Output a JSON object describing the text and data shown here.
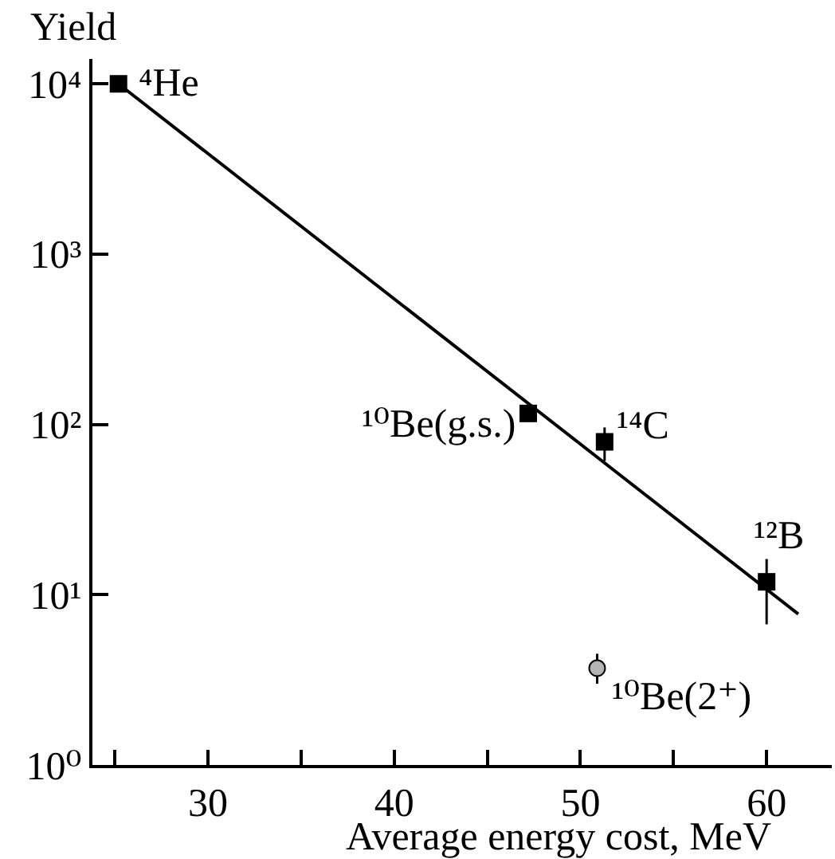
{
  "chart_data": {
    "type": "scatter",
    "xlabel": "Average energy cost, MeV",
    "ylabel": "Yield",
    "log": "y",
    "xlim": [
      23.8,
      63.5
    ],
    "xticks": [
      {
        "value": 25,
        "label": null
      },
      30,
      {
        "value": 35,
        "label": null
      },
      40,
      {
        "value": 45,
        "label": null
      },
      50,
      {
        "value": 55,
        "label": null
      },
      60
    ],
    "ylim": [
      1,
      14000
    ],
    "yticks": [
      {
        "value": 1,
        "label": "10⁰"
      },
      {
        "value": 10,
        "label": "10¹"
      },
      {
        "value": 100,
        "label": "10²"
      },
      {
        "value": 1000,
        "label": "10³"
      },
      {
        "value": 10000,
        "label": "10⁴"
      }
    ],
    "series": [
      {
        "type": "line",
        "color": "#000000",
        "x": [
          25.2,
          61.7
        ],
        "values": [
          10000,
          7.7
        ]
      },
      {
        "marker": "square",
        "color": "#000000",
        "x": [
          25.2,
          47.2,
          51.3,
          60.0
        ],
        "values": [
          10000,
          116,
          79,
          11.9
        ],
        "errors": [
          null,
          null,
          [
            61,
            96
          ],
          [
            6.7,
            16.2
          ]
        ]
      },
      {
        "marker": "circle",
        "color": "#b4b4b4",
        "x": [
          50.9
        ],
        "values": [
          3.7
        ],
        "errors": [
          [
            3.0,
            4.5
          ]
        ]
      }
    ],
    "annotations": [
      {
        "text": "⁴He",
        "x": 25.2,
        "y": 10000
      },
      {
        "text": "¹⁰Be(g.s.)",
        "x": 47.2,
        "y": 116
      },
      {
        "text": "¹⁴C",
        "x": 51.3,
        "y": 79
      },
      {
        "text": "¹²B",
        "x": 60.0,
        "y": 11.9
      },
      {
        "text": "¹⁰Be(2⁺)",
        "x": 50.9,
        "y": 3.7
      }
    ]
  }
}
